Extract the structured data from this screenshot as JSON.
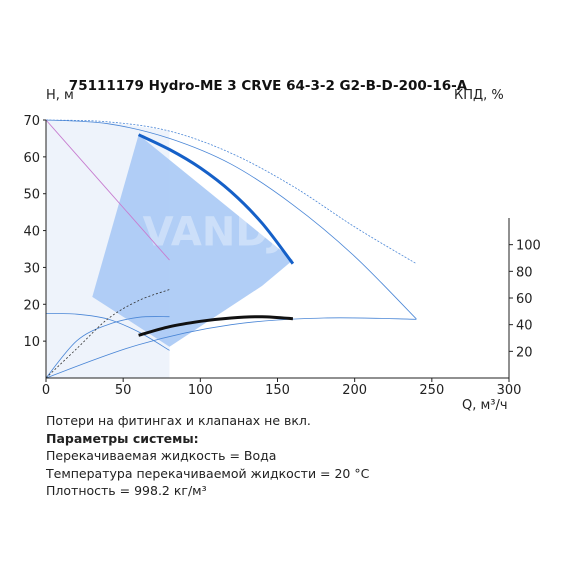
{
  "chart_data": {
    "type": "line",
    "title": "75111179 Hydro-ME 3 CRVE 64-3-2 G2-B-D-200-16-A",
    "ylabel": "H, м",
    "y2label": "КПД, %",
    "xlabel": "Q, м³/ч",
    "xlim": [
      0,
      300
    ],
    "ylim": [
      0,
      70
    ],
    "y2lim": [
      0,
      120
    ],
    "x_ticks": [
      0,
      50,
      100,
      150,
      200,
      250,
      300
    ],
    "y_ticks": [
      10,
      20,
      30,
      40,
      50,
      60,
      70
    ],
    "y2_ticks": [
      20,
      40,
      60,
      80,
      100
    ],
    "watermark": "VANDJORD",
    "colors": {
      "area": "#a9c9f5",
      "envelope": "#eef3fb",
      "head_curve": "#1560c8",
      "efficiency_curve": "#111111",
      "thin_curves": "#4a86d6",
      "pink_curve": "#c77dd0"
    },
    "series": [
      {
        "role": "operating-area",
        "x": [
          60,
          160,
          140,
          80,
          30
        ],
        "y": [
          66,
          32,
          25,
          8.5,
          22
        ]
      },
      {
        "role": "head-curve",
        "x": [
          60,
          80,
          100,
          120,
          140,
          160
        ],
        "y": [
          66,
          62,
          57,
          50.5,
          42,
          31
        ]
      },
      {
        "role": "efficiency-curve",
        "axis": "y2",
        "x": [
          60,
          80,
          100,
          120,
          140,
          160
        ],
        "y": [
          32,
          38.5,
          42.5,
          45,
          46,
          44.5
        ]
      },
      {
        "role": "thin-head-max",
        "x": [
          0,
          40,
          80,
          120,
          160,
          200,
          240
        ],
        "y": [
          70,
          69.5,
          67,
          61,
          52,
          41,
          31
        ]
      },
      {
        "role": "thin-head-upper",
        "x": [
          0,
          40,
          80,
          120,
          160,
          200,
          240
        ],
        "y": [
          70,
          69,
          65,
          58,
          47,
          33,
          16
        ]
      },
      {
        "role": "thin-head-min",
        "x": [
          0,
          20,
          40,
          60,
          80
        ],
        "y": [
          17.5,
          17.3,
          16,
          12.5,
          7.5
        ]
      },
      {
        "role": "thin-power",
        "x": [
          0,
          80
        ],
        "y": [
          70,
          32
        ]
      },
      {
        "role": "thin-eff-small",
        "axis": "y2",
        "x": [
          0,
          20,
          40,
          60,
          80
        ],
        "y": [
          0,
          28,
          40,
          45.5,
          46
        ]
      },
      {
        "role": "thin-eff-large",
        "axis": "y2",
        "x": [
          0,
          60,
          120,
          180,
          240
        ],
        "y": [
          0,
          25,
          40,
          45,
          44
        ]
      }
    ]
  },
  "notes": {
    "line1": "Потери на фитингах и клапанах не вкл.",
    "line2": "Параметры системы:",
    "line3": "Перекачиваемая жидкость = Вода",
    "line4": "Температура перекачиваемой жидкости = 20 °C",
    "line5": "Плотность = 998.2 кг/м³"
  }
}
